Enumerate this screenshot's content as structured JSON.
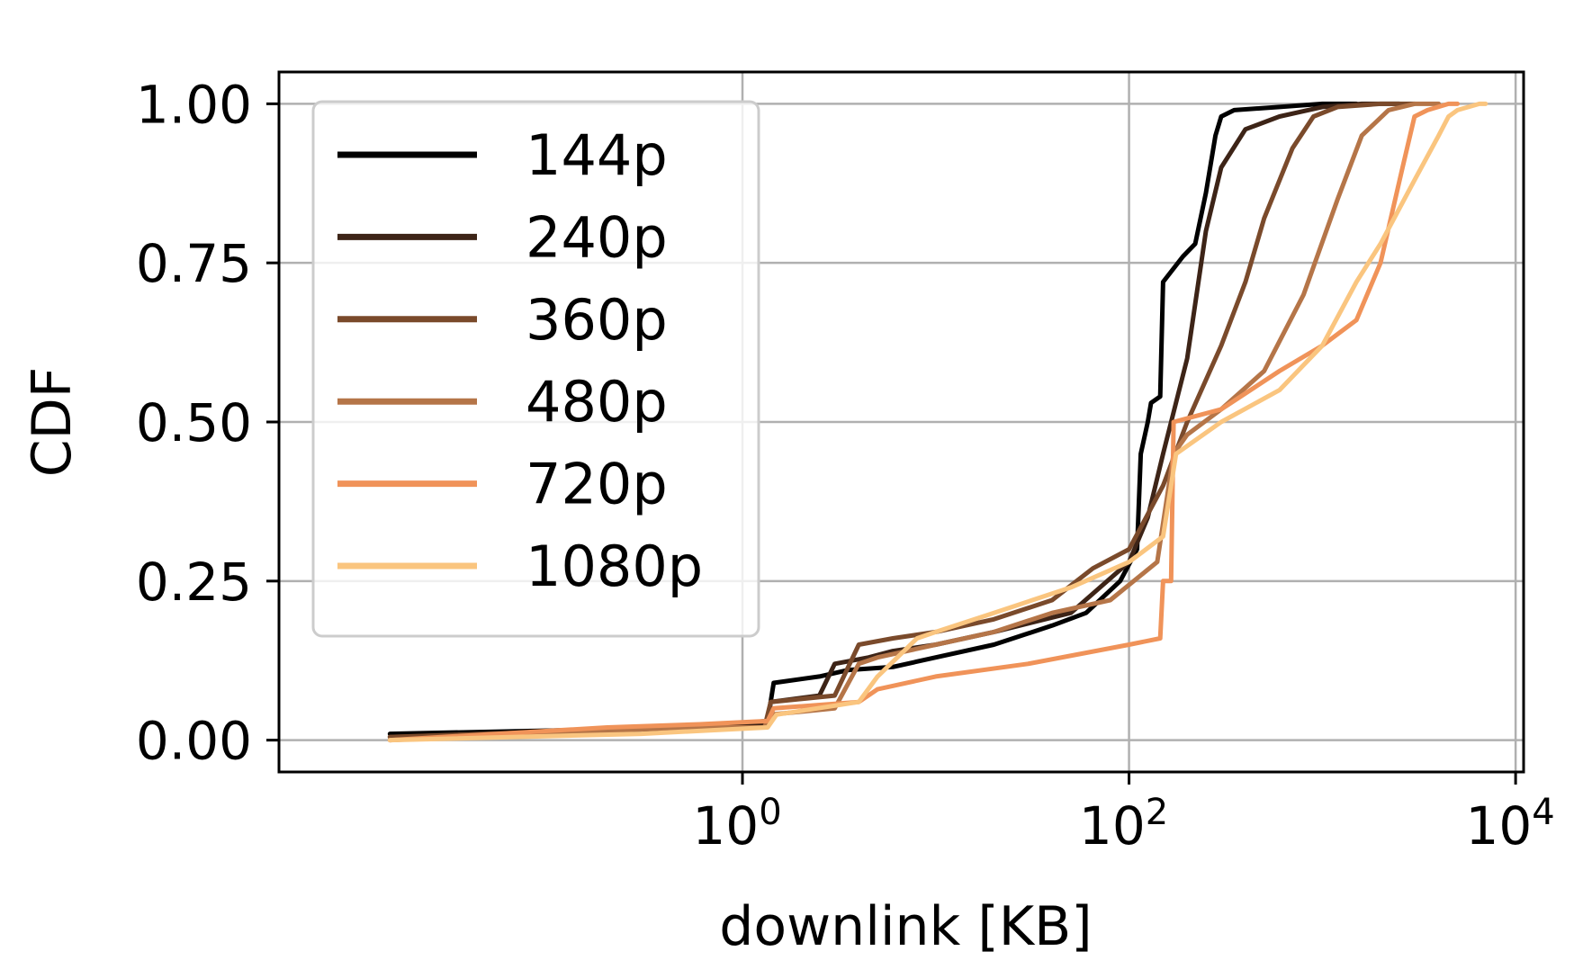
{
  "chart_data": {
    "type": "line",
    "xlabel": "downlink [KB]",
    "ylabel": "CDF",
    "xscale": "log",
    "xlim": [
      0.004,
      11000
    ],
    "ylim": [
      -0.05,
      1.05
    ],
    "grid": true,
    "legend_position": "top-left",
    "xticks": [
      {
        "value": 1,
        "base": "10",
        "exp": "0"
      },
      {
        "value": 100,
        "base": "10",
        "exp": "2"
      },
      {
        "value": 10000,
        "base": "10",
        "exp": "4"
      }
    ],
    "yticks": [
      {
        "value": 0,
        "label": "0.00"
      },
      {
        "value": 0.25,
        "label": "0.25"
      },
      {
        "value": 0.5,
        "label": "0.50"
      },
      {
        "value": 0.75,
        "label": "0.75"
      },
      {
        "value": 1,
        "label": "1.00"
      }
    ],
    "series": [
      {
        "name": "144p",
        "color": "#000000",
        "points": [
          [
            0.015,
            0.01
          ],
          [
            0.1,
            0.015
          ],
          [
            0.5,
            0.02
          ],
          [
            1.35,
            0.03
          ],
          [
            1.45,
            0.09
          ],
          [
            2.5,
            0.1
          ],
          [
            3.5,
            0.11
          ],
          [
            6,
            0.115
          ],
          [
            10,
            0.13
          ],
          [
            20,
            0.15
          ],
          [
            40,
            0.18
          ],
          [
            60,
            0.2
          ],
          [
            90,
            0.25
          ],
          [
            110,
            0.3
          ],
          [
            115,
            0.45
          ],
          [
            125,
            0.5
          ],
          [
            130,
            0.53
          ],
          [
            145,
            0.54
          ],
          [
            150,
            0.72
          ],
          [
            190,
            0.76
          ],
          [
            220,
            0.78
          ],
          [
            250,
            0.86
          ],
          [
            280,
            0.95
          ],
          [
            300,
            0.98
          ],
          [
            350,
            0.99
          ],
          [
            600,
            0.995
          ],
          [
            1000,
            1.0
          ],
          [
            1500,
            1.0
          ]
        ]
      },
      {
        "name": "240p",
        "color": "#3d2417",
        "points": [
          [
            0.015,
            0.005
          ],
          [
            0.2,
            0.015
          ],
          [
            0.6,
            0.02
          ],
          [
            1.35,
            0.025
          ],
          [
            1.4,
            0.06
          ],
          [
            2.5,
            0.07
          ],
          [
            3,
            0.12
          ],
          [
            4.5,
            0.13
          ],
          [
            6,
            0.14
          ],
          [
            10,
            0.15
          ],
          [
            20,
            0.17
          ],
          [
            50,
            0.2
          ],
          [
            100,
            0.28
          ],
          [
            125,
            0.35
          ],
          [
            150,
            0.45
          ],
          [
            200,
            0.6
          ],
          [
            250,
            0.8
          ],
          [
            300,
            0.9
          ],
          [
            400,
            0.96
          ],
          [
            600,
            0.98
          ],
          [
            1000,
            0.995
          ],
          [
            1600,
            1.0
          ],
          [
            2500,
            1.0
          ]
        ]
      },
      {
        "name": "360p",
        "color": "#7a4a2b",
        "points": [
          [
            0.015,
            0.005
          ],
          [
            0.5,
            0.02
          ],
          [
            1.3,
            0.02
          ],
          [
            1.4,
            0.06
          ],
          [
            3,
            0.07
          ],
          [
            4,
            0.15
          ],
          [
            6,
            0.16
          ],
          [
            10,
            0.17
          ],
          [
            20,
            0.19
          ],
          [
            40,
            0.22
          ],
          [
            65,
            0.27
          ],
          [
            100,
            0.3
          ],
          [
            150,
            0.4
          ],
          [
            200,
            0.5
          ],
          [
            300,
            0.62
          ],
          [
            400,
            0.72
          ],
          [
            500,
            0.82
          ],
          [
            700,
            0.93
          ],
          [
            900,
            0.98
          ],
          [
            1200,
            0.995
          ],
          [
            2000,
            1.0
          ],
          [
            3000,
            1.0
          ]
        ]
      },
      {
        "name": "480p",
        "color": "#b57548",
        "points": [
          [
            0.015,
            0.0
          ],
          [
            0.5,
            0.02
          ],
          [
            1.3,
            0.02
          ],
          [
            1.4,
            0.04
          ],
          [
            3,
            0.05
          ],
          [
            4,
            0.12
          ],
          [
            5,
            0.13
          ],
          [
            10,
            0.15
          ],
          [
            20,
            0.17
          ],
          [
            40,
            0.2
          ],
          [
            80,
            0.22
          ],
          [
            140,
            0.28
          ],
          [
            170,
            0.45
          ],
          [
            200,
            0.48
          ],
          [
            300,
            0.52
          ],
          [
            500,
            0.58
          ],
          [
            800,
            0.7
          ],
          [
            1200,
            0.85
          ],
          [
            1600,
            0.95
          ],
          [
            2200,
            0.99
          ],
          [
            3000,
            1.0
          ],
          [
            4000,
            1.0
          ]
        ]
      },
      {
        "name": "720p",
        "color": "#f09359",
        "points": [
          [
            0.015,
            0.0
          ],
          [
            0.2,
            0.02
          ],
          [
            0.6,
            0.025
          ],
          [
            1.35,
            0.03
          ],
          [
            1.45,
            0.05
          ],
          [
            4,
            0.06
          ],
          [
            5,
            0.08
          ],
          [
            10,
            0.1
          ],
          [
            30,
            0.12
          ],
          [
            100,
            0.15
          ],
          [
            145,
            0.16
          ],
          [
            150,
            0.25
          ],
          [
            165,
            0.25
          ],
          [
            170,
            0.5
          ],
          [
            300,
            0.52
          ],
          [
            600,
            0.58
          ],
          [
            1000,
            0.62
          ],
          [
            1500,
            0.66
          ],
          [
            2000,
            0.75
          ],
          [
            2600,
            0.9
          ],
          [
            3000,
            0.98
          ],
          [
            3500,
            0.99
          ],
          [
            4500,
            1.0
          ],
          [
            5000,
            1.0
          ]
        ]
      },
      {
        "name": "1080p",
        "color": "#fac57f",
        "points": [
          [
            0.015,
            0.0
          ],
          [
            0.3,
            0.01
          ],
          [
            1.35,
            0.02
          ],
          [
            1.5,
            0.04
          ],
          [
            4,
            0.06
          ],
          [
            5,
            0.1
          ],
          [
            8,
            0.16
          ],
          [
            10,
            0.17
          ],
          [
            20,
            0.2
          ],
          [
            50,
            0.24
          ],
          [
            100,
            0.28
          ],
          [
            150,
            0.32
          ],
          [
            175,
            0.45
          ],
          [
            300,
            0.5
          ],
          [
            600,
            0.55
          ],
          [
            1000,
            0.62
          ],
          [
            1500,
            0.72
          ],
          [
            2000,
            0.78
          ],
          [
            3000,
            0.88
          ],
          [
            4000,
            0.95
          ],
          [
            4500,
            0.98
          ],
          [
            5000,
            0.99
          ],
          [
            6500,
            1.0
          ],
          [
            7000,
            1.0
          ]
        ]
      }
    ]
  }
}
